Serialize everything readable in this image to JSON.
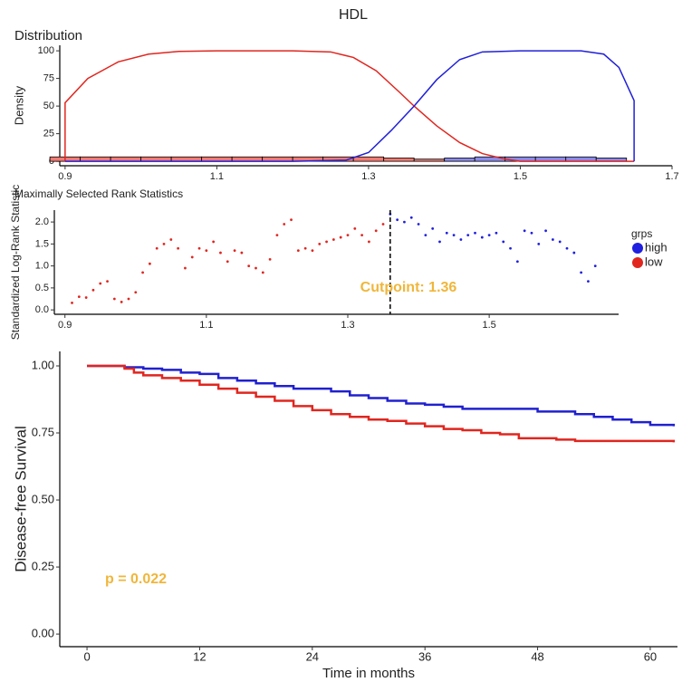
{
  "title": "HDL",
  "chart_data": [
    {
      "type": "line",
      "title": "Distribution",
      "y_label": "Density",
      "xlim": [
        0.893,
        1.7
      ],
      "xticks": [
        0.9,
        1.1,
        1.3,
        1.5,
        1.7
      ],
      "ylim": [
        -4,
        105
      ],
      "yticks": [
        0,
        25,
        50,
        75,
        100
      ],
      "series": [
        {
          "color": "#e0261f",
          "x": [
            0.9,
            0.9,
            0.93,
            0.97,
            1.01,
            1.05,
            1.1,
            1.2,
            1.25,
            1.28,
            1.31,
            1.34,
            1.36,
            1.39,
            1.42,
            1.45,
            1.48,
            1.5,
            1.55,
            1.6,
            1.65
          ],
          "values": [
            0,
            53,
            75,
            90,
            97,
            99.5,
            100,
            100,
            99,
            94,
            82,
            63,
            50,
            32,
            17,
            7,
            2,
            0,
            0,
            0,
            0
          ]
        },
        {
          "color": "#2020d8",
          "x": [
            0.9,
            1.2,
            1.27,
            1.3,
            1.33,
            1.36,
            1.39,
            1.42,
            1.45,
            1.5,
            1.58,
            1.61,
            1.63,
            1.65,
            1.65
          ],
          "values": [
            0,
            0,
            1,
            8,
            28,
            50,
            74,
            92,
            99,
            100,
            100,
            97,
            85,
            55,
            0
          ]
        }
      ],
      "histogram": [
        {
          "color": "#f07a72",
          "bins": [
            0.88,
            0.92,
            0.96,
            1.0,
            1.04,
            1.08,
            1.12,
            1.16,
            1.2,
            1.24,
            1.28,
            1.32,
            1.36,
            1.4,
            1.44,
            1.48,
            1.52
          ],
          "counts": [
            4,
            4,
            4,
            4,
            4,
            4,
            4,
            4,
            4,
            4,
            4,
            3,
            2,
            2,
            2,
            1
          ]
        },
        {
          "color": "#8a8ae8",
          "bins": [
            1.4,
            1.44,
            1.48,
            1.52,
            1.56,
            1.6,
            1.64
          ],
          "counts": [
            3,
            4,
            4,
            4,
            4,
            3
          ]
        }
      ]
    },
    {
      "type": "scatter",
      "title": "Maximally Selected Rank Statistics",
      "y_label": "Standardized Log-Rank Statistic",
      "xlim": [
        0.885,
        1.683
      ],
      "xticks": [
        0.9,
        1.1,
        1.3,
        1.5
      ],
      "ylim": [
        -0.1,
        2.27
      ],
      "yticks": [
        {
          "value": 0,
          "label": "0.0"
        },
        {
          "value": 0.5,
          "label": "0.5"
        },
        {
          "value": 1,
          "label": "1.0"
        },
        {
          "value": 1.5,
          "label": "1.5"
        },
        {
          "value": 2,
          "label": "2.0"
        }
      ],
      "cutpoint": 1.36,
      "annotation": "Cutpoint: 1.36",
      "annotation_color": "#f0b63a",
      "legend_title": "grps",
      "series": [
        {
          "name": "high",
          "color": "#2020e0",
          "x": [
            1.36,
            1.37,
            1.38,
            1.39,
            1.4,
            1.41,
            1.42,
            1.43,
            1.44,
            1.45,
            1.46,
            1.47,
            1.48,
            1.49,
            1.5,
            1.51,
            1.52,
            1.53,
            1.54,
            1.55,
            1.56,
            1.57,
            1.58,
            1.59,
            1.6,
            1.61,
            1.62,
            1.63,
            1.64,
            1.65
          ],
          "values": [
            2.18,
            2.05,
            2.0,
            2.1,
            1.95,
            1.7,
            1.85,
            1.55,
            1.75,
            1.7,
            1.6,
            1.7,
            1.75,
            1.65,
            1.7,
            1.75,
            1.55,
            1.4,
            1.1,
            1.8,
            1.75,
            1.5,
            1.8,
            1.6,
            1.55,
            1.4,
            1.3,
            0.85,
            0.65,
            1.0
          ]
        },
        {
          "name": "low",
          "color": "#e0261f",
          "x": [
            0.91,
            0.92,
            0.93,
            0.94,
            0.95,
            0.96,
            0.97,
            0.98,
            0.99,
            1.0,
            1.01,
            1.02,
            1.03,
            1.04,
            1.05,
            1.06,
            1.07,
            1.08,
            1.09,
            1.1,
            1.11,
            1.12,
            1.13,
            1.14,
            1.15,
            1.16,
            1.17,
            1.18,
            1.19,
            1.2,
            1.21,
            1.22,
            1.23,
            1.24,
            1.25,
            1.26,
            1.27,
            1.28,
            1.29,
            1.3,
            1.31,
            1.32,
            1.33,
            1.34,
            1.35
          ],
          "values": [
            0.16,
            0.3,
            0.28,
            0.45,
            0.6,
            0.65,
            0.25,
            0.18,
            0.25,
            0.4,
            0.85,
            1.05,
            1.4,
            1.5,
            1.6,
            1.4,
            0.95,
            1.2,
            1.4,
            1.35,
            1.55,
            1.3,
            1.1,
            1.35,
            1.3,
            1.0,
            0.95,
            0.85,
            1.15,
            1.7,
            1.95,
            2.05,
            1.35,
            1.4,
            1.35,
            1.5,
            1.55,
            1.6,
            1.65,
            1.7,
            1.85,
            1.7,
            1.55,
            1.8,
            1.95
          ]
        }
      ]
    },
    {
      "type": "step",
      "x_label": "Time in months",
      "y_label": "Disease-free Survival",
      "xlim": [
        -2.9,
        62.9
      ],
      "xticks": [
        0,
        12,
        24,
        36,
        48,
        60
      ],
      "ylim": [
        -0.047,
        1.054
      ],
      "yticks": [
        {
          "value": 0,
          "label": "0.00"
        },
        {
          "value": 0.25,
          "label": "0.25"
        },
        {
          "value": 0.5,
          "label": "0.50"
        },
        {
          "value": 0.75,
          "label": "0.75"
        },
        {
          "value": 1,
          "label": "1.00"
        }
      ],
      "annotation": "p = 0.022",
      "annotation_color": "#f0b63a",
      "series": [
        {
          "color": "#2020d0",
          "x": [
            0,
            4,
            6,
            8,
            10,
            12,
            14,
            16,
            18,
            20,
            22,
            26,
            28,
            30,
            32,
            34,
            36,
            38,
            40,
            48,
            52,
            54,
            56,
            58,
            60,
            62.5
          ],
          "values": [
            1,
            0.995,
            0.99,
            0.985,
            0.975,
            0.97,
            0.955,
            0.945,
            0.935,
            0.925,
            0.915,
            0.905,
            0.89,
            0.88,
            0.87,
            0.86,
            0.855,
            0.848,
            0.84,
            0.83,
            0.82,
            0.81,
            0.8,
            0.79,
            0.78,
            0.775
          ]
        },
        {
          "color": "#e0261f",
          "x": [
            0,
            4,
            5,
            6,
            8,
            10,
            12,
            14,
            16,
            18,
            20,
            22,
            24,
            26,
            28,
            30,
            32,
            34,
            36,
            38,
            40,
            42,
            44,
            46,
            50,
            52,
            62.5
          ],
          "values": [
            1,
            0.99,
            0.975,
            0.965,
            0.955,
            0.945,
            0.93,
            0.915,
            0.9,
            0.885,
            0.87,
            0.85,
            0.835,
            0.82,
            0.81,
            0.8,
            0.795,
            0.785,
            0.775,
            0.765,
            0.76,
            0.75,
            0.745,
            0.73,
            0.725,
            0.72,
            0.715
          ]
        }
      ]
    }
  ]
}
